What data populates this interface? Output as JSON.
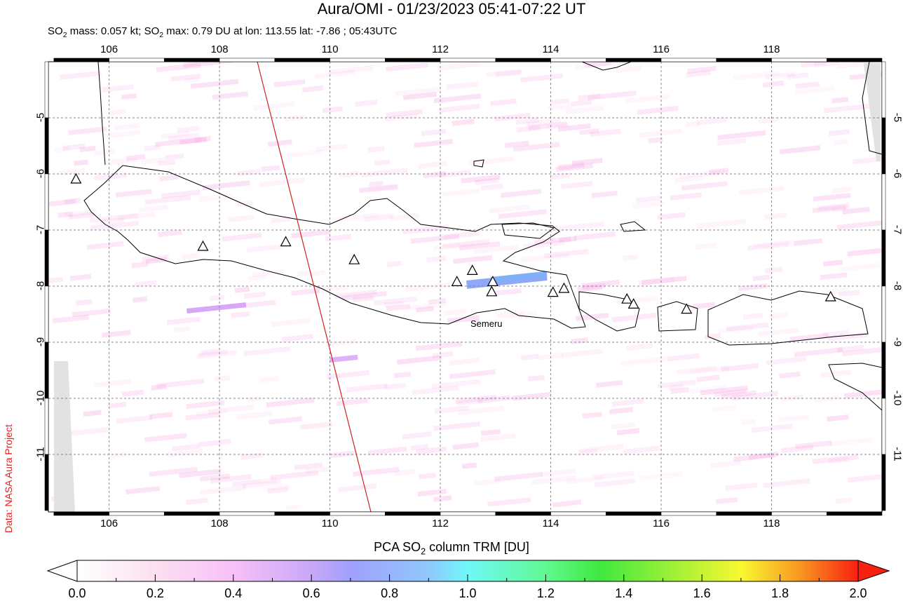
{
  "title": "Aura/OMI - 01/23/2023 05:41-07:22 UT",
  "subtitle": {
    "so2_mass": "SO2 mass: 0.057 kt; SO2 max: 0.79 DU at lon: 113.55 lat: -7.86 ; 05:43UTC"
  },
  "credit": "Data: NASA Aura Project",
  "map": {
    "lon_ticks": [
      "106",
      "108",
      "110",
      "112",
      "114",
      "116",
      "118"
    ],
    "lat_ticks": [
      "-5",
      "-6",
      "-7",
      "-8",
      "-9",
      "-10",
      "-11"
    ],
    "lon_range": [
      104.9,
      120.0
    ],
    "lat_range": [
      -12.36,
      -4.0
    ],
    "volcano_label": "Semeru",
    "max_point": {
      "lon": 113.55,
      "lat": -7.86,
      "value_du": 0.79
    }
  },
  "colorbar": {
    "title": "PCA SO2 column TRM [DU]",
    "ticks": [
      "0.0",
      "0.2",
      "0.4",
      "0.6",
      "0.8",
      "1.0",
      "1.2",
      "1.4",
      "1.6",
      "1.8",
      "2.0"
    ],
    "range": [
      0,
      2.0
    ],
    "colors": [
      "#ffffff",
      "#fbd4f2",
      "#f2b0f8",
      "#c8a8f8",
      "#a0a8fc",
      "#80d8fc",
      "#70f8f0",
      "#60f870",
      "#40e840",
      "#d8f840",
      "#f8f830",
      "#f89020",
      "#f82010"
    ]
  }
}
